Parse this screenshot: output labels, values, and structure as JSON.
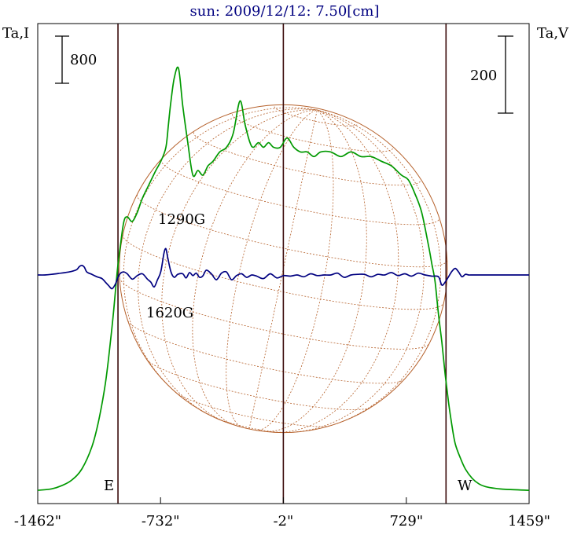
{
  "chart_data": {
    "type": "line",
    "title": "sun: 2009/12/12: 7.50[cm]",
    "left_axis_label": "Ta,I",
    "right_axis_label": "Ta,V",
    "x_ticks": [
      {
        "value": -1462,
        "label": "-1462\""
      },
      {
        "value": -732,
        "label": "-732\""
      },
      {
        "value": -2,
        "label": "-2\""
      },
      {
        "value": 729,
        "label": "729\""
      },
      {
        "value": 1459,
        "label": "1459\""
      }
    ],
    "xlim": [
      -1462,
      1459
    ],
    "vertical_markers": [
      -985,
      -2,
      965
    ],
    "limb_labels": {
      "east": "E",
      "west": "W"
    },
    "scale_bars": {
      "intensity": {
        "label": "800",
        "value": 800
      },
      "polarization": {
        "label": "200",
        "value": 200
      }
    },
    "annotations": [
      {
        "text": "1290G",
        "x": -600
      },
      {
        "text": "1620G",
        "x": -660
      }
    ],
    "solar_disk": {
      "radius": 975
    },
    "series": [
      {
        "key": "intensity",
        "color": "#009900",
        "x": [
          -1462,
          -1380,
          -1320,
          -1260,
          -1200,
          -1140,
          -1100,
          -1060,
          -1030,
          -1010,
          -990,
          -970,
          -950,
          -930,
          -900,
          -870,
          -840,
          -800,
          -760,
          -730,
          -700,
          -685,
          -670,
          -650,
          -625,
          -600,
          -570,
          -540,
          -510,
          -480,
          -450,
          -420,
          -380,
          -340,
          -300,
          -260,
          -230,
          -200,
          -180,
          -150,
          -120,
          -90,
          -60,
          -20,
          20,
          60,
          100,
          140,
          180,
          220,
          280,
          340,
          400,
          460,
          520,
          580,
          640,
          700,
          740,
          780,
          820,
          860,
          880,
          900,
          920,
          940,
          960,
          980,
          1000,
          1020,
          1050,
          1080,
          1120,
          1160,
          1200,
          1260,
          1320,
          1459
        ],
        "values": [
          50,
          65,
          100,
          160,
          280,
          520,
          800,
          1200,
          1650,
          2000,
          2400,
          2700,
          2950,
          3000,
          2950,
          3050,
          3200,
          3350,
          3500,
          3600,
          3750,
          4000,
          4250,
          4500,
          4600,
          4200,
          3800,
          3450,
          3500,
          3450,
          3550,
          3600,
          3700,
          3750,
          3900,
          4250,
          4000,
          3800,
          3750,
          3800,
          3750,
          3800,
          3750,
          3750,
          3850,
          3750,
          3700,
          3700,
          3650,
          3700,
          3700,
          3650,
          3700,
          3650,
          3650,
          3600,
          3550,
          3450,
          3400,
          3250,
          3050,
          2700,
          2500,
          2300,
          1950,
          1650,
          1300,
          1000,
          750,
          550,
          400,
          280,
          180,
          120,
          90,
          70,
          60,
          50
        ],
        "ylim": [
          0,
          5000
        ]
      },
      {
        "key": "polarization",
        "color": "#000080",
        "x": [
          -1462,
          -1420,
          -1380,
          -1340,
          -1300,
          -1260,
          -1230,
          -1215,
          -1200,
          -1185,
          -1170,
          -1140,
          -1110,
          -1080,
          -1060,
          -1040,
          -1020,
          -1000,
          -985,
          -970,
          -950,
          -930,
          -900,
          -870,
          -840,
          -810,
          -790,
          -770,
          -750,
          -730,
          -712,
          -700,
          -690,
          -670,
          -650,
          -630,
          -600,
          -580,
          -560,
          -540,
          -520,
          -500,
          -480,
          -460,
          -430,
          -400,
          -370,
          -340,
          -310,
          -280,
          -250,
          -220,
          -190,
          -160,
          -120,
          -80,
          -40,
          0,
          40,
          80,
          120,
          160,
          200,
          240,
          280,
          320,
          360,
          400,
          440,
          480,
          520,
          560,
          600,
          640,
          680,
          720,
          760,
          800,
          840,
          880,
          920,
          940,
          960,
          980,
          1000,
          1020,
          1040,
          1060,
          1080,
          1100,
          1120,
          1160,
          1200,
          1240,
          1280,
          1320,
          1360,
          1400,
          1459
        ],
        "values": [
          0,
          0,
          2,
          5,
          8,
          12,
          18,
          28,
          32,
          26,
          10,
          2,
          -6,
          -12,
          -24,
          -36,
          -46,
          -30,
          -8,
          6,
          10,
          4,
          -14,
          -2,
          4,
          -14,
          -24,
          -40,
          -16,
          12,
          72,
          88,
          60,
          10,
          -8,
          2,
          4,
          -10,
          8,
          -2,
          6,
          -8,
          -3,
          16,
          4,
          -16,
          6,
          10,
          -16,
          -2,
          4,
          -8,
          0,
          -4,
          -12,
          4,
          -10,
          -2,
          -4,
          0,
          -6,
          4,
          -2,
          0,
          0,
          6,
          -8,
          0,
          2,
          2,
          -6,
          2,
          0,
          8,
          -2,
          4,
          -4,
          6,
          0,
          -4,
          -6,
          -34,
          -24,
          -6,
          12,
          22,
          10,
          -6,
          2,
          0,
          0,
          0,
          0,
          0,
          0,
          0,
          0,
          0,
          0
        ],
        "ylim": [
          -500,
          500
        ]
      }
    ]
  }
}
